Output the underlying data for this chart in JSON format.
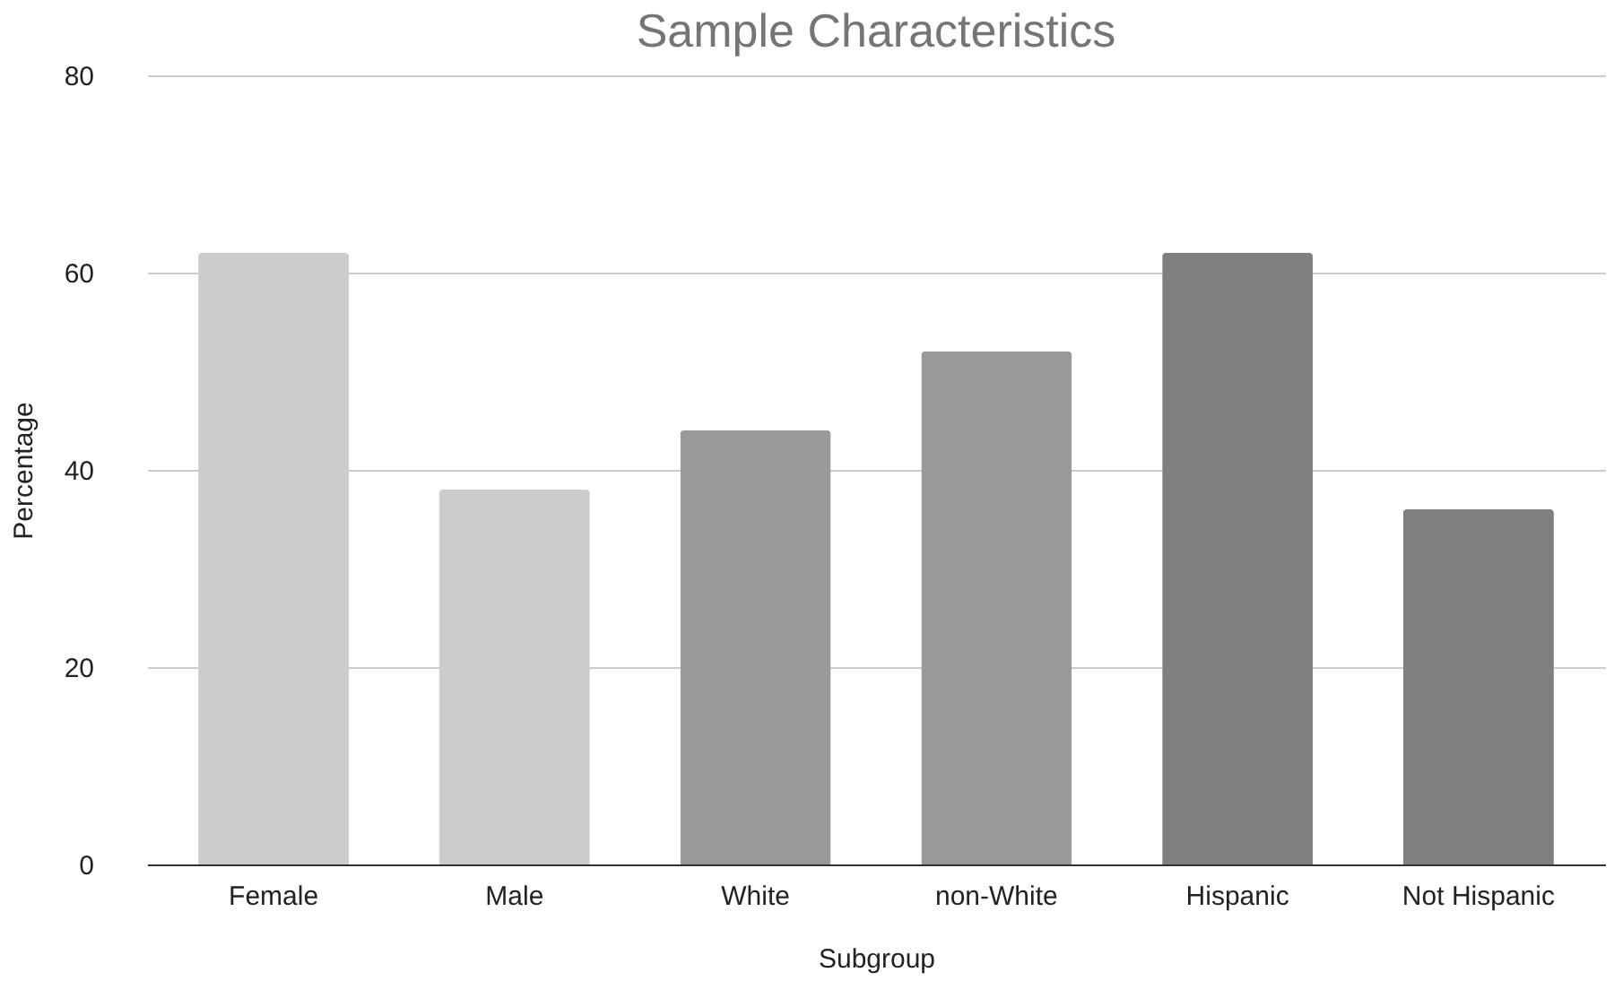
{
  "chart_data": {
    "type": "bar",
    "title": "Sample Characteristics",
    "xlabel": "Subgroup",
    "ylabel": "Percentage",
    "categories": [
      "Female",
      "Male",
      "White",
      "non-White",
      "Hispanic",
      "Not Hispanic"
    ],
    "values": [
      62,
      38,
      44,
      52,
      62,
      36
    ],
    "colors": [
      "#cccccc",
      "#cccccc",
      "#999999",
      "#999999",
      "#7f7f7f",
      "#7f7f7f"
    ],
    "ylim": [
      0,
      80
    ],
    "yticks": [
      0,
      20,
      40,
      60,
      80
    ],
    "grid": "y",
    "legend": false
  }
}
